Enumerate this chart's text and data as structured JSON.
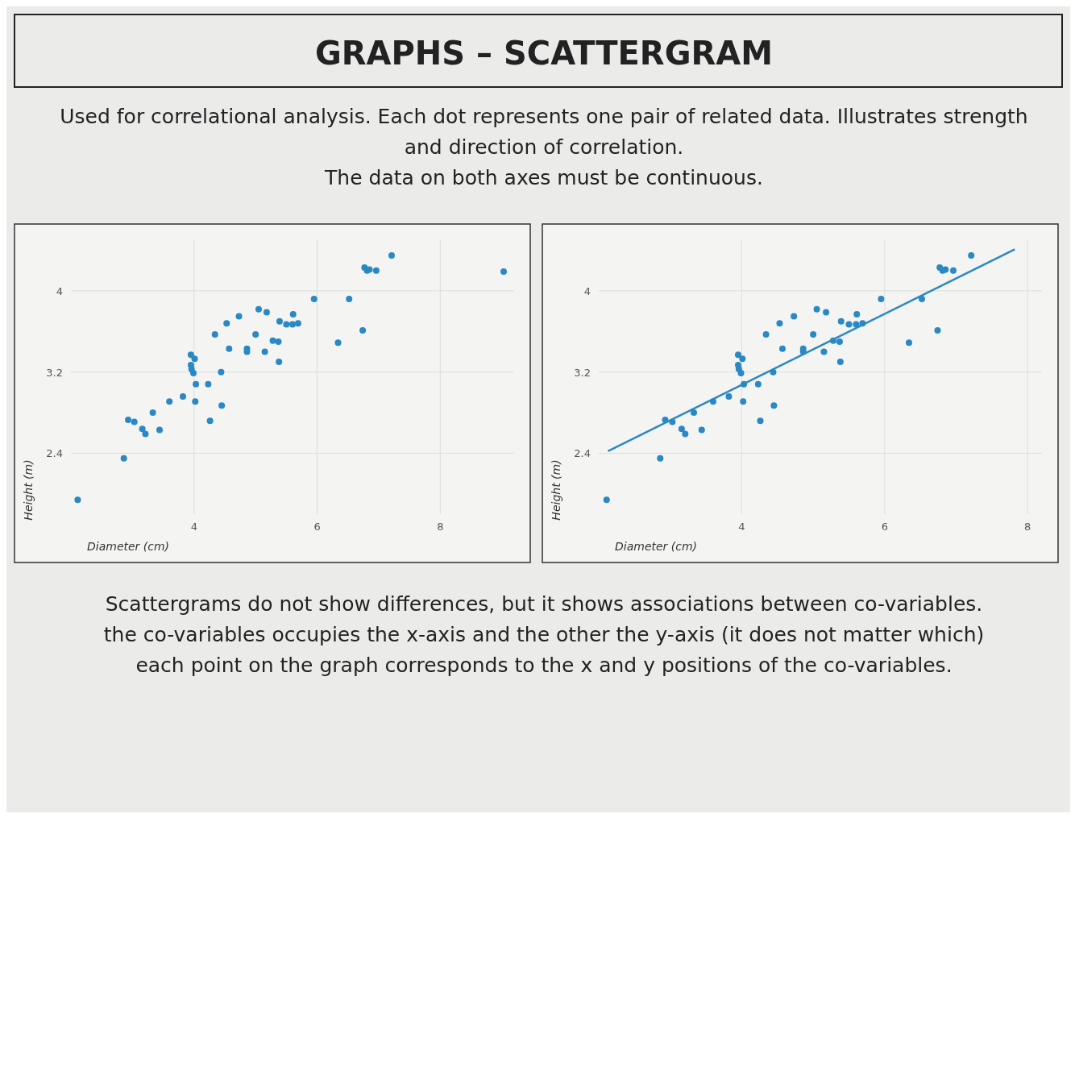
{
  "chart_data": [
    {
      "type": "other",
      "title": "GRAPHS – SCATTERGRAM",
      "annotations": [
        "Used for correlational analysis. Each dot represents one pair of related data. Illustrates strength",
        "and direction of correlation.",
        "The data on both axes must be continuous."
      ]
    },
    {
      "type": "scatter",
      "xlabel": "Diameter (cm)",
      "ylabel": "Height (m)",
      "xlim": [
        2,
        9.2
      ],
      "ylim": [
        1.8,
        4.5
      ],
      "xticks": [
        4,
        6,
        8
      ],
      "yticks": [
        2.4,
        3.2,
        4
      ],
      "grid": true,
      "marker": "circle",
      "series": [
        {
          "color": "#2a88c4",
          "x": [
            2.11,
            2.86,
            2.93,
            3.03,
            3.16,
            3.21,
            3.33,
            3.44,
            3.6,
            3.82,
            3.95,
            4.01,
            3.95,
            3.96,
            3.99,
            4.03,
            4.02,
            4.23,
            4.26,
            4.34,
            4.44,
            4.45,
            4.53,
            4.57,
            4.73,
            4.86,
            4.86,
            5,
            5.05,
            5.18,
            5.15,
            5.28,
            5.37,
            5.38,
            5.39,
            5.5,
            5.6,
            5.61,
            5.69,
            5.95,
            6.34,
            6.52,
            6.74,
            6.77,
            6.81,
            6.85,
            6.96,
            7.21,
            9.03
          ],
          "values": [
            1.94,
            2.35,
            2.73,
            2.71,
            2.64,
            2.59,
            2.8,
            2.63,
            2.91,
            2.96,
            3.37,
            3.33,
            3.27,
            3.23,
            3.19,
            3.08,
            2.91,
            3.08,
            2.72,
            3.57,
            3.2,
            2.87,
            3.68,
            3.43,
            3.75,
            3.43,
            3.4,
            3.57,
            3.82,
            3.79,
            3.4,
            3.51,
            3.5,
            3.3,
            3.7,
            3.67,
            3.67,
            3.77,
            3.68,
            3.92,
            3.49,
            3.92,
            3.61,
            4.23,
            4.2,
            4.21,
            4.2,
            4.35,
            4.19
          ]
        }
      ]
    },
    {
      "type": "scatter",
      "xlabel": "Diameter (cm)",
      "ylabel": "Height (m)",
      "xlim": [
        2,
        8.2
      ],
      "ylim": [
        1.8,
        4.5
      ],
      "xticks": [
        4,
        6,
        8
      ],
      "yticks": [
        2.4,
        3.2,
        4
      ],
      "grid": true,
      "series": [
        {
          "color": "#2a88c4",
          "marker": "circle",
          "x": [
            2.11,
            2.86,
            2.93,
            3.03,
            3.16,
            3.21,
            3.33,
            3.44,
            3.6,
            3.82,
            3.95,
            4.01,
            3.95,
            3.96,
            3.99,
            4.03,
            4.02,
            4.23,
            4.26,
            4.34,
            4.44,
            4.45,
            4.53,
            4.57,
            4.73,
            4.86,
            4.86,
            5,
            5.05,
            5.18,
            5.15,
            5.28,
            5.37,
            5.38,
            5.39,
            5.5,
            5.6,
            5.61,
            5.69,
            5.95,
            6.34,
            6.52,
            6.74,
            6.77,
            6.81,
            6.85,
            6.96,
            7.21
          ],
          "values": [
            1.94,
            2.35,
            2.73,
            2.71,
            2.64,
            2.59,
            2.8,
            2.63,
            2.91,
            2.96,
            3.37,
            3.33,
            3.27,
            3.23,
            3.19,
            3.08,
            2.91,
            3.08,
            2.72,
            3.57,
            3.2,
            2.87,
            3.68,
            3.43,
            3.75,
            3.43,
            3.4,
            3.57,
            3.82,
            3.79,
            3.4,
            3.51,
            3.5,
            3.3,
            3.7,
            3.67,
            3.67,
            3.77,
            3.68,
            3.92,
            3.49,
            3.92,
            3.61,
            4.23,
            4.2,
            4.21,
            4.2,
            4.35
          ]
        },
        {
          "type": "line",
          "marker": "none",
          "color": "#2a88c4",
          "x": [
            2.13,
            7.82
          ],
          "values": [
            2.42,
            4.41
          ]
        }
      ]
    },
    {
      "type": "other",
      "annotations": [
        "Scattergrams do not show differences, but it shows associations between co-variables.",
        "the co-variables occupies the x-axis and the other the y-axis (it does not matter which)",
        "each point on the graph corresponds to the x and y positions of the co-variables."
      ]
    }
  ]
}
